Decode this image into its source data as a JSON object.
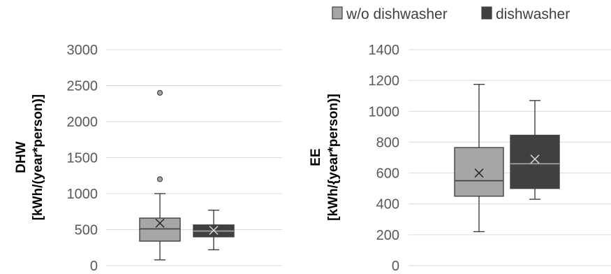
{
  "legend": [
    {
      "label": "w/o dishwasher",
      "color": "#a6a6a6"
    },
    {
      "label": "dishwasher",
      "color": "#404040"
    }
  ],
  "chart_data": [
    {
      "type": "boxplot",
      "ylabel": [
        "DHW",
        "[kWh/(year*person)]"
      ],
      "ylim": [
        0,
        3000
      ],
      "yticks": [
        "0",
        "500",
        "1000",
        "1500",
        "2000",
        "2500",
        "3000"
      ],
      "grid": true,
      "series": [
        {
          "name": "w/o dishwasher",
          "min": 80,
          "q1": 340,
          "median": 510,
          "q3": 660,
          "max": 1000,
          "mean": 590,
          "outliers": [
            1200,
            2400
          ]
        },
        {
          "name": "dishwasher",
          "min": 220,
          "q1": 400,
          "median": 480,
          "q3": 565,
          "max": 770,
          "mean": 490,
          "outliers": []
        }
      ]
    },
    {
      "type": "boxplot",
      "ylabel": [
        "EE",
        "[kWh/{year*person)]"
      ],
      "ylim": [
        0,
        1400
      ],
      "yticks": [
        "0",
        "200",
        "400",
        "600",
        "800",
        "1000",
        "1200",
        "1400"
      ],
      "grid": true,
      "series": [
        {
          "name": "w/o dishwasher",
          "min": 220,
          "q1": 450,
          "median": 550,
          "q3": 765,
          "max": 1175,
          "mean": 600,
          "outliers": []
        },
        {
          "name": "dishwasher",
          "min": 430,
          "q1": 500,
          "median": 660,
          "q3": 845,
          "max": 1070,
          "mean": 690,
          "outliers": []
        }
      ]
    }
  ]
}
